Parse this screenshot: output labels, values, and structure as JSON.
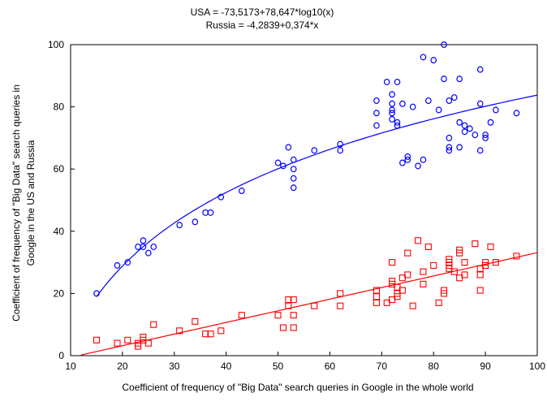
{
  "chart_data": {
    "type": "scatter",
    "equations": [
      "USA = -73,5173+78,647*log10(x)",
      "Russia = -4,2839+0,374*x"
    ],
    "xlabel": "Coefficient of frequency of \"Big Data\" search queries in Google in the whole world",
    "ylabel_lines": [
      "Coefficient of frequency of \"Big Data\" search queries in",
      "Google in the US and Russia"
    ],
    "xlim": [
      10,
      100
    ],
    "ylim": [
      0,
      100
    ],
    "x_ticks": [
      "10",
      "20",
      "30",
      "40",
      "50",
      "60",
      "70",
      "80",
      "90",
      "100"
    ],
    "y_ticks": [
      "0",
      "20",
      "40",
      "60",
      "80",
      "100"
    ],
    "grid": false,
    "series": [
      {
        "marker": "circle",
        "color": "#0000ff",
        "fit": {
          "kind": "log10",
          "intercept": -73.5173,
          "slope": 78.647,
          "x_range": [
            15,
            100
          ]
        },
        "points": [
          [
            15,
            20
          ],
          [
            19,
            29
          ],
          [
            21,
            30
          ],
          [
            23,
            35
          ],
          [
            24,
            35
          ],
          [
            24,
            37
          ],
          [
            25,
            33
          ],
          [
            26,
            35
          ],
          [
            31,
            42
          ],
          [
            34,
            43
          ],
          [
            36,
            46
          ],
          [
            37,
            46
          ],
          [
            39,
            51
          ],
          [
            43,
            53
          ],
          [
            50,
            62
          ],
          [
            51,
            61
          ],
          [
            52,
            67
          ],
          [
            53,
            63
          ],
          [
            53,
            60
          ],
          [
            53,
            57
          ],
          [
            53,
            54
          ],
          [
            57,
            66
          ],
          [
            62,
            68
          ],
          [
            62,
            66
          ],
          [
            69,
            82
          ],
          [
            69,
            78
          ],
          [
            69,
            74
          ],
          [
            71,
            88
          ],
          [
            72,
            84
          ],
          [
            72,
            81
          ],
          [
            72,
            79
          ],
          [
            72,
            78
          ],
          [
            72,
            76
          ],
          [
            73,
            88
          ],
          [
            73,
            75
          ],
          [
            73,
            74
          ],
          [
            74,
            81
          ],
          [
            74,
            62
          ],
          [
            75,
            64
          ],
          [
            75,
            63
          ],
          [
            76,
            80
          ],
          [
            77,
            61
          ],
          [
            78,
            96
          ],
          [
            78,
            63
          ],
          [
            79,
            82
          ],
          [
            80,
            95
          ],
          [
            81,
            79
          ],
          [
            82,
            89
          ],
          [
            82,
            100
          ],
          [
            83,
            82
          ],
          [
            83,
            70
          ],
          [
            83,
            67
          ],
          [
            83,
            66
          ],
          [
            84,
            83
          ],
          [
            85,
            89
          ],
          [
            85,
            67
          ],
          [
            85,
            75
          ],
          [
            86,
            74
          ],
          [
            86,
            72
          ],
          [
            87,
            73
          ],
          [
            88,
            71
          ],
          [
            89,
            92
          ],
          [
            89,
            81
          ],
          [
            89,
            66
          ],
          [
            90,
            70
          ],
          [
            90,
            71
          ],
          [
            91,
            75
          ],
          [
            92,
            79
          ],
          [
            96,
            78
          ]
        ]
      },
      {
        "marker": "square",
        "color": "#ff0000",
        "fit": {
          "kind": "linear",
          "intercept": -4.2839,
          "slope": 0.374,
          "x_range": [
            10,
            100
          ]
        },
        "points": [
          [
            15,
            5
          ],
          [
            19,
            4
          ],
          [
            21,
            5
          ],
          [
            23,
            3
          ],
          [
            23,
            4
          ],
          [
            24,
            6
          ],
          [
            24,
            5
          ],
          [
            25,
            4
          ],
          [
            26,
            10
          ],
          [
            31,
            8
          ],
          [
            34,
            11
          ],
          [
            36,
            7
          ],
          [
            37,
            7
          ],
          [
            39,
            8
          ],
          [
            43,
            13
          ],
          [
            50,
            13
          ],
          [
            51,
            9
          ],
          [
            52,
            18
          ],
          [
            52,
            16
          ],
          [
            53,
            18
          ],
          [
            53,
            13
          ],
          [
            53,
            9
          ],
          [
            57,
            16
          ],
          [
            62,
            20
          ],
          [
            62,
            16
          ],
          [
            69,
            21
          ],
          [
            69,
            19
          ],
          [
            69,
            17
          ],
          [
            71,
            17
          ],
          [
            72,
            30
          ],
          [
            72,
            24
          ],
          [
            72,
            23
          ],
          [
            72,
            18
          ],
          [
            73,
            20
          ],
          [
            73,
            19
          ],
          [
            73,
            22
          ],
          [
            74,
            25
          ],
          [
            74,
            21
          ],
          [
            75,
            33
          ],
          [
            75,
            26
          ],
          [
            76,
            16
          ],
          [
            77,
            37
          ],
          [
            78,
            27
          ],
          [
            78,
            23
          ],
          [
            79,
            35
          ],
          [
            80,
            29
          ],
          [
            81,
            17
          ],
          [
            82,
            21
          ],
          [
            82,
            20
          ],
          [
            83,
            31
          ],
          [
            83,
            30
          ],
          [
            83,
            29
          ],
          [
            83,
            28
          ],
          [
            84,
            27
          ],
          [
            85,
            34
          ],
          [
            85,
            33
          ],
          [
            85,
            25
          ],
          [
            86,
            26
          ],
          [
            86,
            30
          ],
          [
            88,
            36
          ],
          [
            89,
            26
          ],
          [
            89,
            28
          ],
          [
            89,
            21
          ],
          [
            90,
            30
          ],
          [
            90,
            29
          ],
          [
            91,
            35
          ],
          [
            92,
            30
          ],
          [
            96,
            32
          ]
        ]
      }
    ]
  }
}
